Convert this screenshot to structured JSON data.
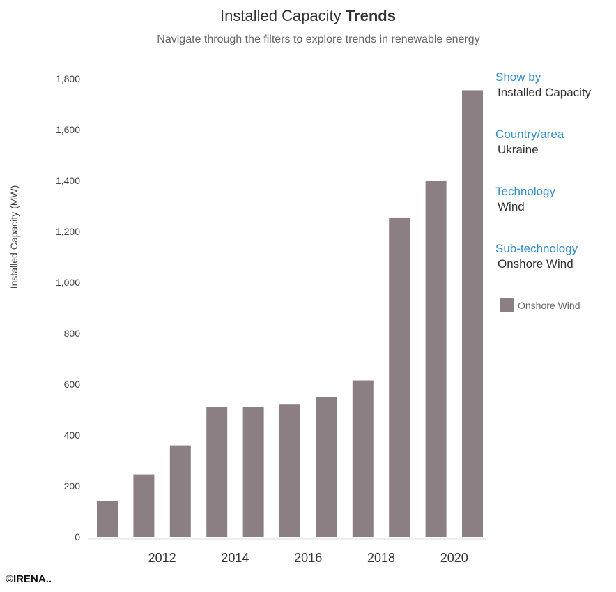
{
  "header": {
    "title_prefix": "Installed Capacity",
    "title_bold": "Trends",
    "subtitle": "Navigate through the filters to explore trends in renewable energy"
  },
  "filters": [
    {
      "label": "Show by",
      "value": "Installed Capacity"
    },
    {
      "label": "Country/area",
      "value": "Ukraine"
    },
    {
      "label": "Technology",
      "value": "Wind"
    },
    {
      "label": "Sub-technology",
      "value": "Onshore Wind"
    }
  ],
  "legend": {
    "label": "Onshore Wind"
  },
  "copyright": "©IRENA..",
  "colors": {
    "bar": "#8c7f84",
    "filter_label": "#2e8fce"
  },
  "chart_data": {
    "type": "bar",
    "categories": [
      "2011",
      "2012",
      "2013",
      "2014",
      "2015",
      "2016",
      "2017",
      "2018",
      "2019",
      "2020",
      "2021"
    ],
    "x_tick_labels": [
      "2012",
      "2014",
      "2016",
      "2018",
      "2020"
    ],
    "series": [
      {
        "name": "Onshore Wind",
        "values": [
          140,
          245,
          360,
          510,
          510,
          520,
          550,
          615,
          1255,
          1400,
          1755
        ]
      }
    ],
    "ylabel": "Installed Capacity (MW)",
    "xlabel": "",
    "ylim": [
      0,
      1800
    ],
    "y_ticks": [
      "0",
      "200",
      "400",
      "600",
      "800",
      "1,000",
      "1,200",
      "1,400",
      "1,600",
      "1,800"
    ],
    "grid": false,
    "legend_position": "right"
  }
}
